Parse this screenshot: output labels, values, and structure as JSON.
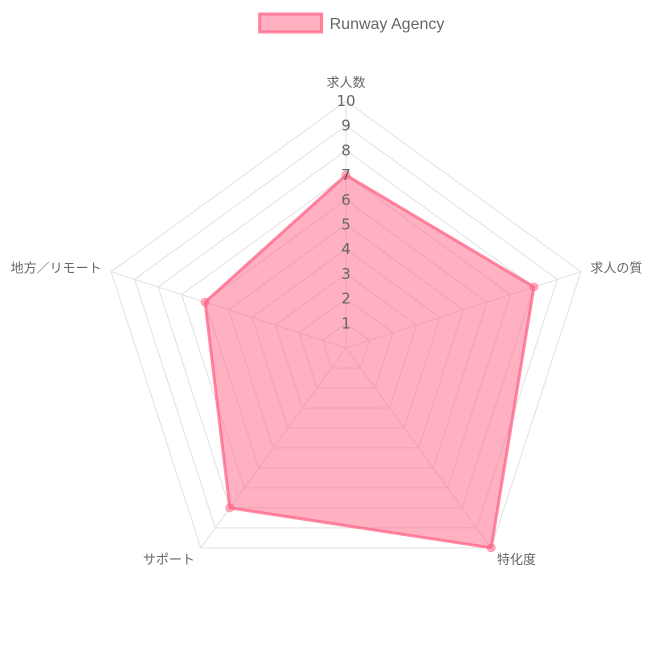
{
  "chart_data": {
    "type": "radar",
    "axes": [
      "求人数",
      "求人の質",
      "特化度",
      "サポート",
      "地方／リモート"
    ],
    "rlim": [
      0,
      10
    ],
    "ticks": [
      1,
      2,
      3,
      4,
      5,
      6,
      7,
      8,
      9,
      10
    ],
    "grid": true,
    "legend": "top",
    "series": [
      {
        "name": "Runway Agency",
        "values": [
          7,
          8,
          10,
          8,
          6
        ],
        "color": "#ff6384"
      }
    ]
  }
}
